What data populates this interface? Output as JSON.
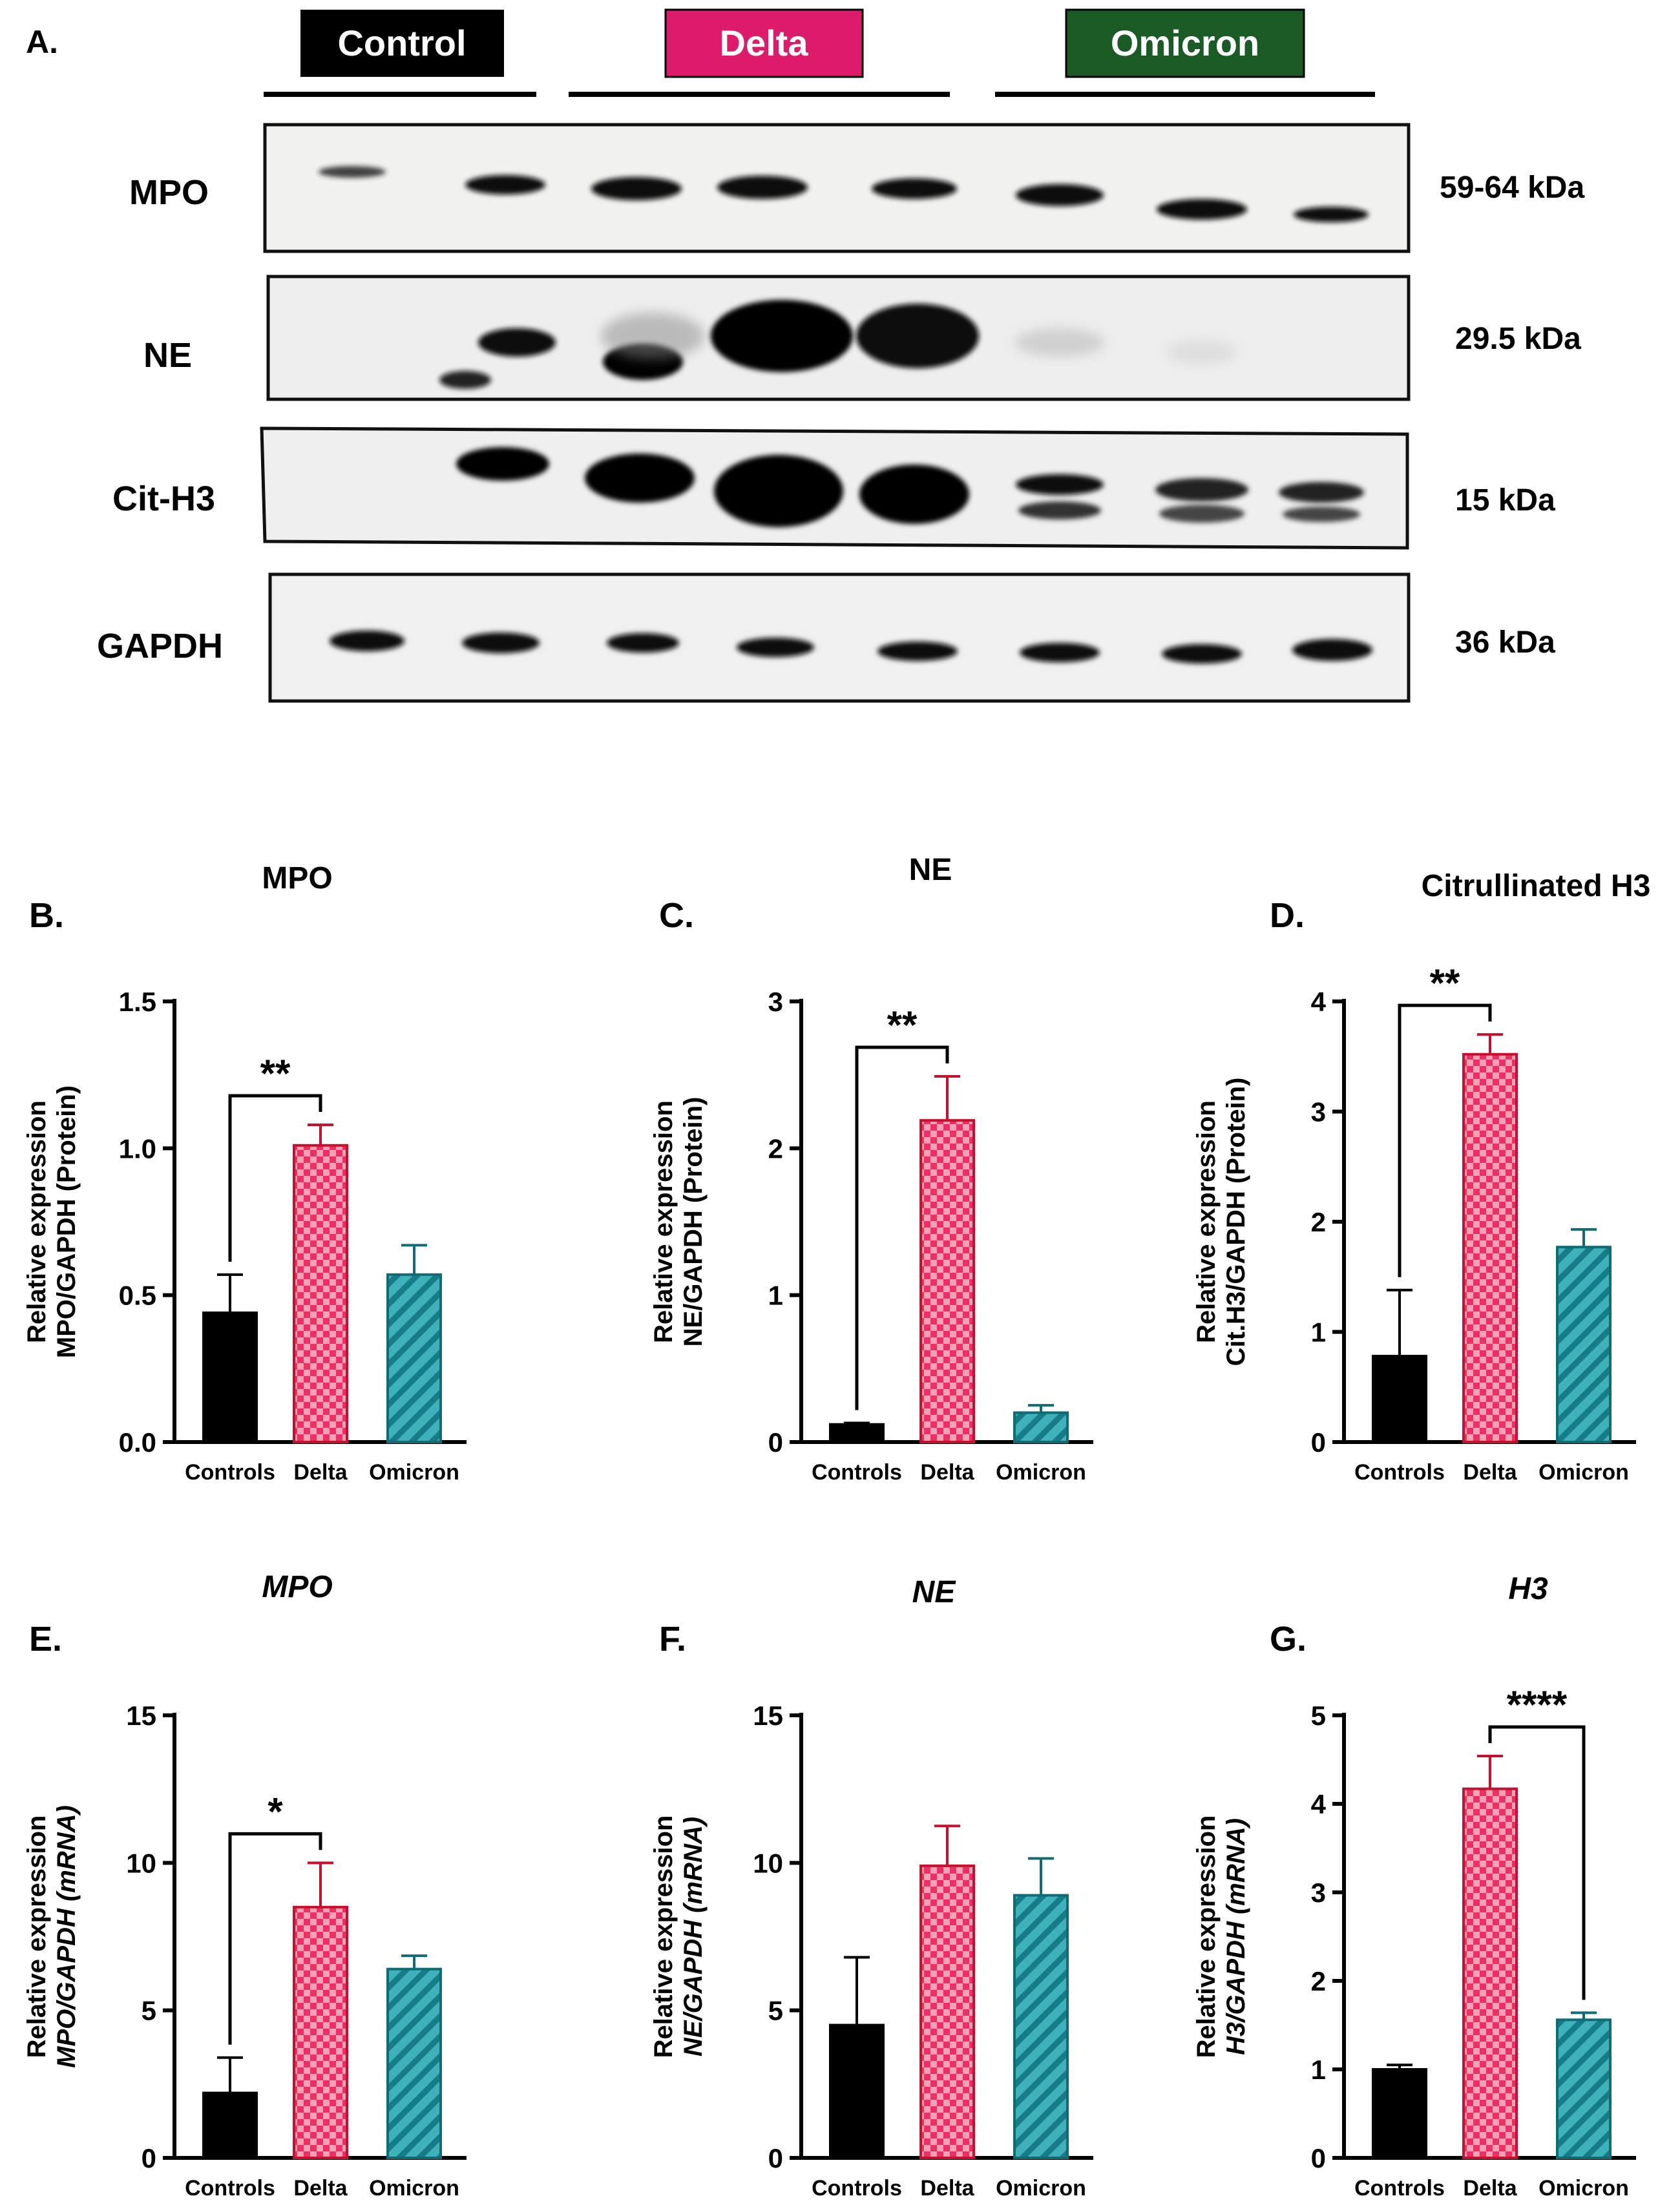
{
  "blot": {
    "panel_letter": "A.",
    "groups": [
      {
        "label": "Control",
        "fill": "#000000"
      },
      {
        "label": "Delta",
        "fill": "#de1a6a"
      },
      {
        "label": "Omicron",
        "fill": "#1a5a24"
      }
    ],
    "rows": [
      {
        "name": "MPO",
        "size": "59-64 kDa"
      },
      {
        "name": "NE",
        "size": "29.5 kDa"
      },
      {
        "name": "Cit-H3",
        "size": "15 kDa"
      },
      {
        "name": "GAPDH",
        "size": "36 kDa"
      }
    ]
  },
  "colors": {
    "controls": "#000000",
    "delta_fill": "#f2557e",
    "delta_stroke": "#c8102e",
    "omicron_fill": "#2a9aa6",
    "omicron_stroke": "#0f6b75"
  },
  "chart_data": [
    {
      "panel": "B.",
      "type": "bar",
      "title": "MPO",
      "title_italic": false,
      "ylabel_lines": [
        "Relative expression",
        "MPO/GAPDH (Protein)"
      ],
      "ylabel_italic": false,
      "categories": [
        "Controls",
        "Delta",
        "Omicron"
      ],
      "values": [
        0.44,
        1.01,
        0.57
      ],
      "errors": [
        0.13,
        0.07,
        0.1
      ],
      "ylim": [
        0,
        1.5
      ],
      "yticks": [
        "0.0",
        "0.5",
        "1.0",
        "1.5"
      ],
      "significance": {
        "from": 0,
        "to": 1,
        "label": "**"
      }
    },
    {
      "panel": "C.",
      "type": "bar",
      "title": "NE",
      "title_italic": false,
      "ylabel_lines": [
        "Relative expression",
        "NE/GAPDH (Protein)"
      ],
      "ylabel_italic": false,
      "categories": [
        "Controls",
        "Delta",
        "Omicron"
      ],
      "values": [
        0.12,
        2.19,
        0.2
      ],
      "errors": [
        0.01,
        0.3,
        0.05
      ],
      "ylim": [
        0,
        3
      ],
      "yticks": [
        "0",
        "1",
        "2",
        "3"
      ],
      "significance": {
        "from": 0,
        "to": 1,
        "label": "**"
      }
    },
    {
      "panel": "D.",
      "type": "bar",
      "title": "Citrullinated H3",
      "title_italic": false,
      "ylabel_lines": [
        "Relative expression",
        "Cit.H3/GAPDH (Protein)"
      ],
      "ylabel_italic": false,
      "categories": [
        "Controls",
        "Delta",
        "Omicron"
      ],
      "values": [
        0.78,
        3.52,
        1.77
      ],
      "errors": [
        0.6,
        0.18,
        0.16
      ],
      "ylim": [
        0,
        4
      ],
      "yticks": [
        "0",
        "1",
        "2",
        "3",
        "4"
      ],
      "significance": {
        "from": 0,
        "to": 1,
        "label": "**"
      }
    },
    {
      "panel": "E.",
      "type": "bar",
      "title": "MPO",
      "title_italic": true,
      "ylabel_lines": [
        "Relative expression",
        "MPO/GAPDH (mRNA)"
      ],
      "ylabel_italic": true,
      "categories": [
        "Controls",
        "Delta",
        "Omicron"
      ],
      "values": [
        2.2,
        8.5,
        6.4
      ],
      "errors": [
        1.2,
        1.5,
        0.45
      ],
      "ylim": [
        0,
        15
      ],
      "yticks": [
        "0",
        "5",
        "10",
        "15"
      ],
      "significance": {
        "from": 0,
        "to": 1,
        "label": "*"
      }
    },
    {
      "panel": "F.",
      "type": "bar",
      "title": "NE",
      "title_italic": true,
      "ylabel_lines": [
        "Relative expression",
        "NE/GAPDH (mRNA)"
      ],
      "ylabel_italic": true,
      "categories": [
        "Controls",
        "Delta",
        "Omicron"
      ],
      "values": [
        4.5,
        9.9,
        8.9
      ],
      "errors": [
        2.3,
        1.35,
        1.25
      ],
      "ylim": [
        0,
        15
      ],
      "yticks": [
        "0",
        "5",
        "10",
        "15"
      ],
      "significance": null
    },
    {
      "panel": "G.",
      "type": "bar",
      "title": "H3",
      "title_italic": true,
      "ylabel_lines": [
        "Relative expression",
        "H3/GAPDH (mRNA)"
      ],
      "ylabel_italic": true,
      "categories": [
        "Controls",
        "Delta",
        "Omicron"
      ],
      "values": [
        1.0,
        4.17,
        1.56
      ],
      "errors": [
        0.05,
        0.37,
        0.08
      ],
      "ylim": [
        0,
        5
      ],
      "yticks": [
        "0",
        "1",
        "2",
        "3",
        "4",
        "5"
      ],
      "significance": {
        "from": 1,
        "to": 2,
        "label": "****"
      }
    }
  ]
}
